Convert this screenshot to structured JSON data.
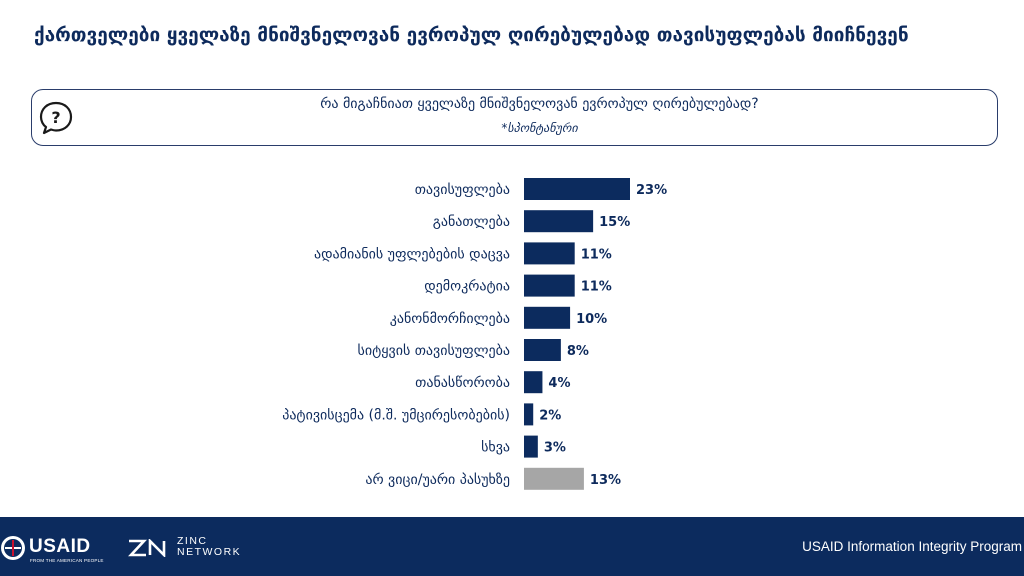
{
  "title": "ქართველები ყველაზე მნიშვნელოვან ევროპულ ღირებულებად თავისუფლებას მიიჩნევენ",
  "question": {
    "icon": "question-mark-icon",
    "text": "რა მიგაჩნიათ ყველაზე მნიშვნელოვან ევროპულ ღირებულებად?",
    "note": "*სპონტანური"
  },
  "chart_data": {
    "type": "bar",
    "orientation": "horizontal",
    "categories": [
      "თავისუფლება",
      "განათლება",
      "ადამიანის უფლებების დაცვა",
      "დემოკრატია",
      "კანონმორჩილება",
      "სიტყვის თავისუფლება",
      "თანასწორობა",
      "პატივისცემა (მ.შ. უმცირესობების)",
      "სხვა",
      "არ ვიცი/უარი პასუხზე"
    ],
    "values": [
      23,
      15,
      11,
      11,
      10,
      8,
      4,
      2,
      3,
      13
    ],
    "value_labels": [
      "23%",
      "15%",
      "11%",
      "11%",
      "10%",
      "8%",
      "4%",
      "2%",
      "3%",
      "13%"
    ],
    "unit": "%",
    "colors": [
      "#0c2b5e",
      "#0c2b5e",
      "#0c2b5e",
      "#0c2b5e",
      "#0c2b5e",
      "#0c2b5e",
      "#0c2b5e",
      "#0c2b5e",
      "#0c2b5e",
      "#a6a6a6"
    ],
    "xlim": [
      0,
      23
    ],
    "grid": false,
    "legend": "none"
  },
  "footer": {
    "usaid_logo": "USAID",
    "usaid_tagline": "FROM THE AMERICAN PEOPLE",
    "zinc_logo": [
      "ZINC",
      "NETWORK"
    ],
    "program": "USAID Information Integrity Program"
  }
}
